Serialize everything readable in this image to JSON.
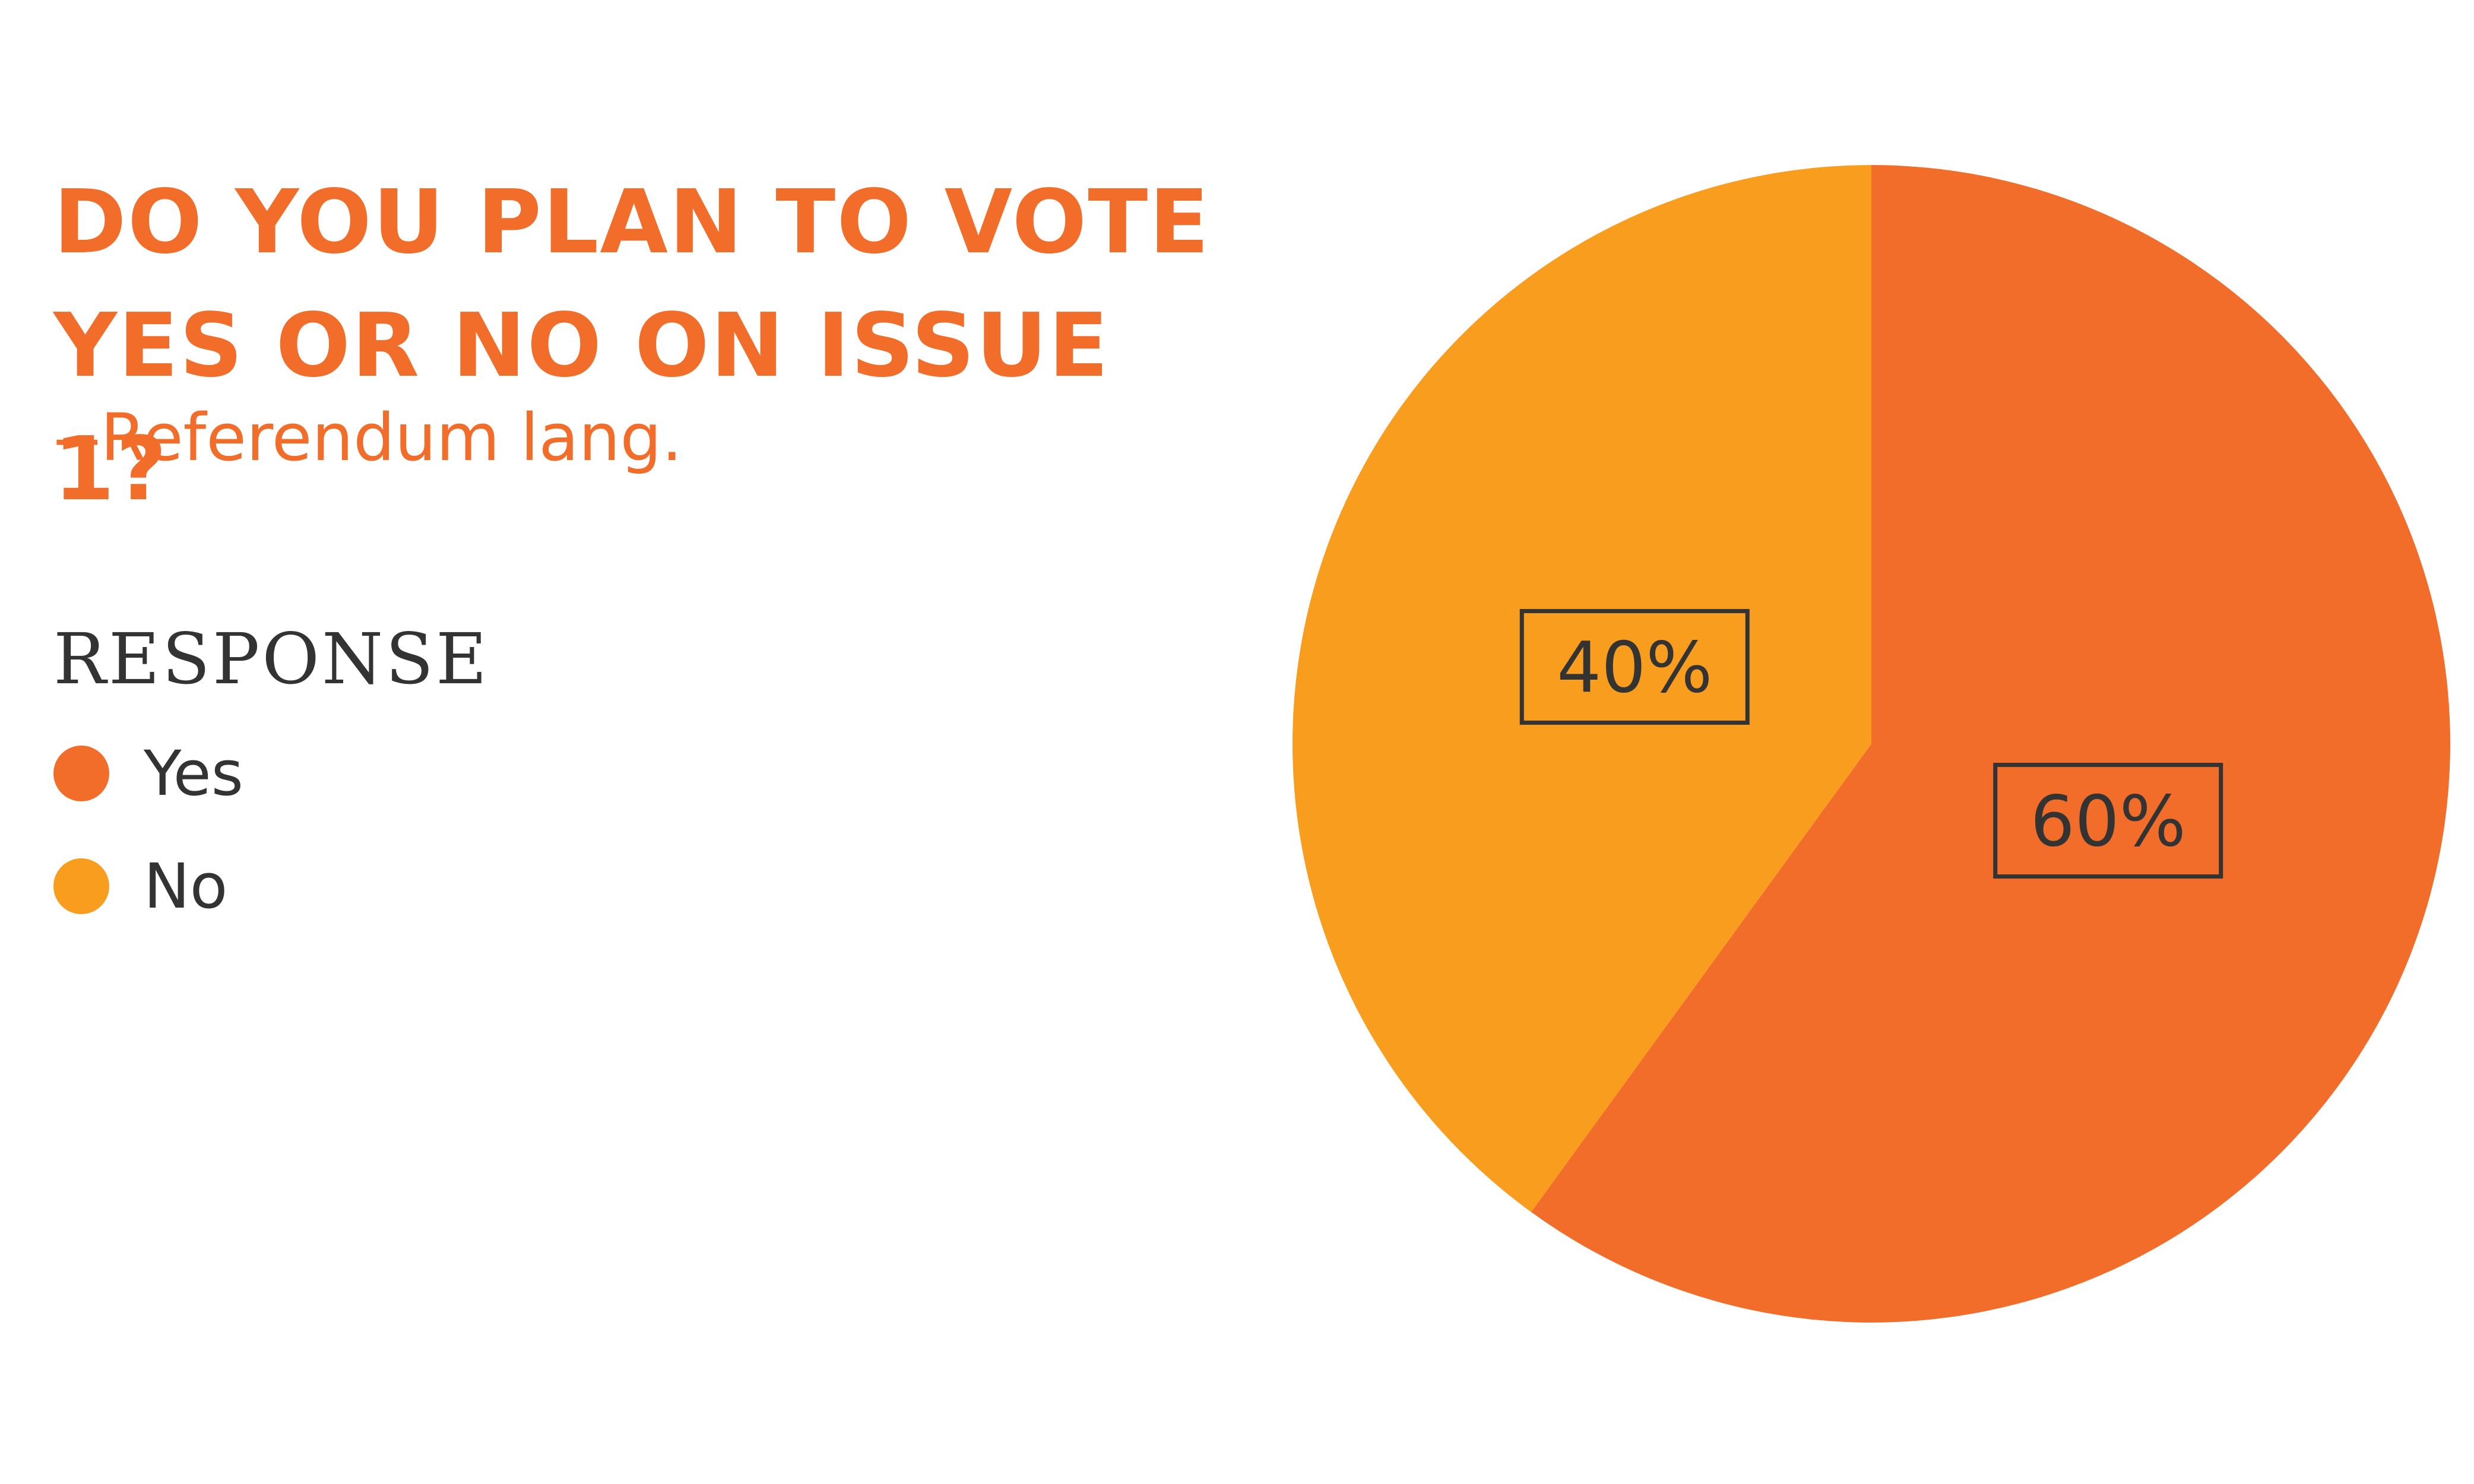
{
  "chart_data": {
    "type": "pie",
    "title": "DO YOU PLAN TO VOTE YES OR NO ON ISSUE 1?",
    "subtitle": "--Referendum lang.",
    "legend_title": "RESPONSE",
    "legend_position": "left",
    "categories": [
      "Yes",
      "No"
    ],
    "values": [
      60,
      40
    ],
    "labels": [
      "60%",
      "40%"
    ],
    "colors": [
      "#f26d2a",
      "#f99d1f"
    ]
  }
}
